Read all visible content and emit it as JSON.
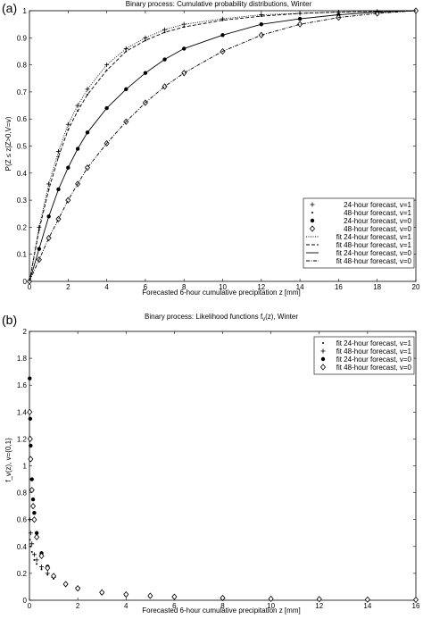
{
  "chart_data": [
    {
      "panel_label": "(a)",
      "type": "line",
      "title": "Binary process: Cumulative probability distributions, Winter",
      "xlabel": "Forecasted 6-hour cumulative precipitation  z [mm]",
      "ylabel": "P(Z ≤ z|Z>0,V=v)",
      "xlim": [
        0,
        20
      ],
      "ylim": [
        0,
        1
      ],
      "xticks": [
        "0",
        "2",
        "4",
        "6",
        "8",
        "10",
        "12",
        "14",
        "16",
        "18",
        "20"
      ],
      "yticks": [
        "0",
        "0.1",
        "0.2",
        "0.3",
        "0.4",
        "0.5",
        "0.6",
        "0.7",
        "0.8",
        "0.9",
        "1"
      ],
      "grid": false,
      "legend_position": "bottom-right",
      "series": [
        {
          "name": "24-hour forecast, v=1",
          "marker": "+",
          "x": [
            0,
            0.5,
            1,
            1.5,
            2,
            2.5,
            3,
            4,
            5,
            6,
            7,
            8,
            10,
            12,
            14,
            16,
            18,
            20
          ],
          "y": [
            0,
            0.2,
            0.36,
            0.48,
            0.58,
            0.65,
            0.71,
            0.8,
            0.86,
            0.9,
            0.93,
            0.95,
            0.97,
            0.985,
            0.99,
            0.995,
            0.998,
            1
          ]
        },
        {
          "name": "48-hour forecast, v=1",
          "marker": "dot",
          "x": [
            0,
            0.5,
            1,
            1.5,
            2,
            2.5,
            3,
            4,
            5,
            6,
            7,
            8,
            10,
            12,
            14,
            16,
            18,
            20
          ],
          "y": [
            0,
            0.19,
            0.34,
            0.46,
            0.56,
            0.63,
            0.69,
            0.78,
            0.85,
            0.89,
            0.92,
            0.94,
            0.965,
            0.98,
            0.99,
            0.995,
            0.998,
            1
          ]
        },
        {
          "name": "24-hour forecast, v=0",
          "marker": "star",
          "x": [
            0,
            0.5,
            1,
            1.5,
            2,
            2.5,
            3,
            4,
            5,
            6,
            7,
            8,
            10,
            12,
            14,
            16,
            18,
            20
          ],
          "y": [
            0,
            0.12,
            0.24,
            0.34,
            0.42,
            0.49,
            0.55,
            0.64,
            0.71,
            0.77,
            0.82,
            0.86,
            0.91,
            0.95,
            0.97,
            0.985,
            0.995,
            1
          ]
        },
        {
          "name": "48-hour forecast, v=0",
          "marker": "diamond",
          "x": [
            0,
            0.5,
            1,
            1.5,
            2,
            2.5,
            3,
            4,
            5,
            6,
            7,
            8,
            10,
            12,
            14,
            16,
            18,
            20
          ],
          "y": [
            0,
            0.08,
            0.16,
            0.23,
            0.3,
            0.36,
            0.42,
            0.51,
            0.59,
            0.66,
            0.72,
            0.77,
            0.85,
            0.91,
            0.95,
            0.975,
            0.99,
            1
          ]
        },
        {
          "name": "fit 24-hour forecast, v=1",
          "line": "dotted",
          "x": [
            0,
            0.5,
            1,
            1.5,
            2,
            2.5,
            3,
            4,
            5,
            6,
            7,
            8,
            10,
            12,
            14,
            16,
            18,
            20
          ],
          "y": [
            0,
            0.2,
            0.36,
            0.48,
            0.58,
            0.65,
            0.71,
            0.8,
            0.86,
            0.9,
            0.93,
            0.95,
            0.97,
            0.985,
            0.99,
            0.995,
            0.998,
            1
          ]
        },
        {
          "name": "fit 48-hour forecast, v=1",
          "line": "dashed",
          "x": [
            0,
            0.5,
            1,
            1.5,
            2,
            2.5,
            3,
            4,
            5,
            6,
            7,
            8,
            10,
            12,
            14,
            16,
            18,
            20
          ],
          "y": [
            0,
            0.19,
            0.34,
            0.46,
            0.56,
            0.63,
            0.69,
            0.78,
            0.85,
            0.89,
            0.92,
            0.94,
            0.965,
            0.98,
            0.99,
            0.995,
            0.998,
            1
          ]
        },
        {
          "name": "fit 24-hour forecast, v=0",
          "line": "solid",
          "x": [
            0,
            0.5,
            1,
            1.5,
            2,
            2.5,
            3,
            4,
            5,
            6,
            7,
            8,
            10,
            12,
            14,
            16,
            18,
            20
          ],
          "y": [
            0,
            0.12,
            0.24,
            0.34,
            0.42,
            0.49,
            0.55,
            0.64,
            0.71,
            0.77,
            0.82,
            0.86,
            0.91,
            0.95,
            0.97,
            0.985,
            0.995,
            1
          ]
        },
        {
          "name": "fit 48-hour forecast, v=0",
          "line": "dashdot",
          "x": [
            0,
            0.5,
            1,
            1.5,
            2,
            2.5,
            3,
            4,
            5,
            6,
            7,
            8,
            10,
            12,
            14,
            16,
            18,
            20
          ],
          "y": [
            0,
            0.08,
            0.16,
            0.23,
            0.3,
            0.36,
            0.42,
            0.51,
            0.59,
            0.66,
            0.72,
            0.77,
            0.85,
            0.91,
            0.95,
            0.975,
            0.99,
            1
          ]
        }
      ]
    },
    {
      "panel_label": "(b)",
      "type": "scatter",
      "title": "Binary process: Likelihood functions f",
      "title_sub": "v",
      "title_tail": "(z), Winter",
      "xlabel": "Forecasted 6-hour cumulative precipitation  z [mm]",
      "ylabel": "f_v(z), v={0,1}",
      "xlim": [
        0,
        16
      ],
      "ylim": [
        0,
        2
      ],
      "xticks": [
        "0",
        "2",
        "4",
        "6",
        "8",
        "10",
        "12",
        "14",
        "16"
      ],
      "yticks": [
        "0",
        "0.2",
        "0.4",
        "0.6",
        "0.8",
        "1",
        "1.2",
        "1.4",
        "1.6",
        "1.8",
        "2"
      ],
      "grid": false,
      "legend_position": "top-right",
      "series": [
        {
          "name": "fit 24-hour forecast, v=1",
          "marker": "dot",
          "x": [
            0.02,
            0.05,
            0.1,
            0.2,
            0.3,
            0.5,
            0.75,
            1,
            1.5,
            2,
            3,
            4,
            5,
            6,
            8,
            10,
            12,
            14,
            16
          ],
          "y": [
            0.45,
            0.4,
            0.36,
            0.3,
            0.27,
            0.23,
            0.19,
            0.16,
            0.12,
            0.09,
            0.06,
            0.045,
            0.035,
            0.028,
            0.018,
            0.012,
            0.008,
            0.005,
            0.004
          ]
        },
        {
          "name": "fit 48-hour forecast, v=1",
          "marker": "+",
          "x": [
            0.02,
            0.05,
            0.1,
            0.2,
            0.3,
            0.5,
            0.75,
            1,
            1.5,
            2,
            3,
            4,
            5,
            6,
            8,
            10,
            12,
            14,
            16
          ],
          "y": [
            0.6,
            0.5,
            0.42,
            0.34,
            0.3,
            0.25,
            0.2,
            0.17,
            0.12,
            0.095,
            0.062,
            0.046,
            0.036,
            0.029,
            0.019,
            0.013,
            0.009,
            0.006,
            0.004
          ]
        },
        {
          "name": "fit 24-hour forecast, v=0",
          "marker": "star",
          "x": [
            0.01,
            0.03,
            0.05,
            0.1,
            0.15,
            0.2,
            0.3,
            0.5,
            0.75,
            1,
            1.5,
            2,
            3,
            4,
            5,
            6,
            8,
            10,
            12,
            14,
            16
          ],
          "y": [
            1.65,
            1.35,
            1.15,
            0.9,
            0.75,
            0.65,
            0.5,
            0.35,
            0.25,
            0.18,
            0.12,
            0.085,
            0.055,
            0.04,
            0.03,
            0.024,
            0.015,
            0.01,
            0.007,
            0.004,
            0.003
          ]
        },
        {
          "name": "fit 48-hour forecast, v=0",
          "marker": "diamond",
          "x": [
            0.01,
            0.03,
            0.05,
            0.1,
            0.15,
            0.2,
            0.3,
            0.5,
            0.75,
            1,
            1.5,
            2,
            3,
            4,
            5,
            6,
            8,
            10,
            12,
            14,
            16
          ],
          "y": [
            1.4,
            1.2,
            1.05,
            0.82,
            0.7,
            0.6,
            0.47,
            0.33,
            0.24,
            0.18,
            0.12,
            0.088,
            0.058,
            0.043,
            0.033,
            0.026,
            0.017,
            0.011,
            0.008,
            0.005,
            0.003
          ]
        }
      ]
    }
  ]
}
